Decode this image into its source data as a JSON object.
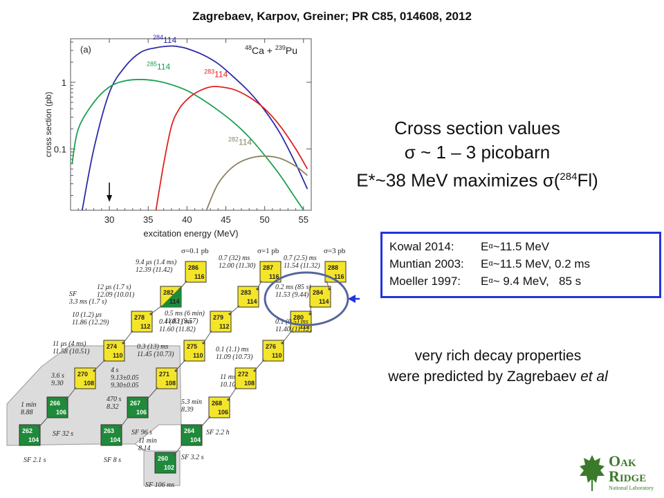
{
  "header": {
    "reference": "Zagrebaev, Karpov, Greiner; PR C85, 014608, 2012"
  },
  "summary": {
    "line1": "Cross section values",
    "line2": "σ ~ 1 – 3 picobarn",
    "line3_pre": "E*~38 MeV maximizes σ(",
    "line3_sup": "284",
    "line3_post": "Fl)"
  },
  "measurements": [
    {
      "label": "Kowal 2014:",
      "sym": "E",
      "sub": "α",
      "value": "~11.5 MeV"
    },
    {
      "label": "Muntian 2003:",
      "sym": "E",
      "sub": "α",
      "value": "~11.5 MeV, 0.2 ms"
    },
    {
      "label": "Moeller 1997:",
      "sym": "E",
      "sub": "α",
      "value": "~ 9.4 MeV,   85 s"
    }
  ],
  "remark": {
    "line1": "very rich decay properties",
    "line2_pre": "were predicted by Zagrebaev ",
    "line2_em": "et al"
  },
  "logo": {
    "line1_big1": "O",
    "line1_rest1": "AK",
    "line2_big": "R",
    "line2_rest": "IDGE",
    "line3": "National Laboratory",
    "color": "#3a7a2a"
  },
  "chart_data": {
    "type": "line",
    "panel": "(a)",
    "reaction": {
      "m1": "48",
      "e1": "Ca",
      "plus": " + ",
      "m2": "239",
      "e2": "Pu"
    },
    "xlabel": "excitation energy (MeV)",
    "ylabel": "cross section (pb)",
    "xlim": [
      25,
      56
    ],
    "ylim": [
      0.012,
      4.5
    ],
    "yscale": "log",
    "xticks": [
      30,
      35,
      40,
      45,
      50,
      55
    ],
    "yticks": [
      {
        "v": 1,
        "label": "1"
      },
      {
        "v": 0.1,
        "label": "0.1"
      }
    ],
    "arrow_x": 30,
    "series": [
      {
        "name": "284 114",
        "A": "284",
        "Z": "114",
        "color": "#2a2aa8",
        "label_x": 35.6,
        "label_y": 3.9,
        "x": [
          26.5,
          28,
          30,
          32,
          34,
          36,
          38,
          39,
          40,
          42,
          44,
          46,
          48,
          50,
          52,
          54,
          55.5
        ],
        "y": [
          0.012,
          0.1,
          0.7,
          1.7,
          2.8,
          3.3,
          3.5,
          3.4,
          3.2,
          2.6,
          1.9,
          1.2,
          0.72,
          0.38,
          0.17,
          0.06,
          0.025
        ]
      },
      {
        "name": "285 114",
        "A": "285",
        "Z": "114",
        "color": "#1aa050",
        "label_x": 34.8,
        "label_y": 1.55,
        "x": [
          25.2,
          26,
          28,
          30,
          32,
          34,
          36,
          38,
          40,
          42,
          44,
          46,
          48,
          50,
          52,
          54,
          55.5
        ],
        "y": [
          0.06,
          0.2,
          0.5,
          0.85,
          1.05,
          1.1,
          1.05,
          0.92,
          0.75,
          0.55,
          0.38,
          0.25,
          0.15,
          0.08,
          0.04,
          0.018,
          0.01
        ]
      },
      {
        "name": "283 114",
        "A": "283",
        "Z": "114",
        "color": "#e02020",
        "label_x": 42.2,
        "label_y": 1.2,
        "x": [
          36,
          37,
          38,
          39,
          40,
          41,
          42,
          43,
          44,
          46,
          48,
          50,
          52,
          54,
          55.5
        ],
        "y": [
          0.012,
          0.06,
          0.22,
          0.4,
          0.55,
          0.68,
          0.78,
          0.85,
          0.86,
          0.78,
          0.6,
          0.4,
          0.22,
          0.1,
          0.05
        ]
      },
      {
        "name": "282 114",
        "A": "282",
        "Z": "114",
        "color": "#8a8260",
        "label_x": 45.3,
        "label_y": 0.115,
        "x": [
          42.5,
          44,
          46,
          48,
          50,
          52,
          54,
          55.5
        ],
        "y": [
          0.012,
          0.03,
          0.055,
          0.072,
          0.078,
          0.072,
          0.055,
          0.04
        ]
      }
    ]
  },
  "chain": {
    "sigma_labels": [
      "σ=0.1 pb",
      "σ=1 pb",
      "σ=3 pb"
    ],
    "nuclides": [
      {
        "A": "286",
        "Z": "116",
        "type": "y"
      },
      {
        "A": "287",
        "Z": "116",
        "type": "y"
      },
      {
        "A": "288",
        "Z": "116",
        "type": "y"
      },
      {
        "A": "282",
        "Z": "114",
        "type": "yg"
      },
      {
        "A": "283",
        "Z": "114",
        "type": "y"
      },
      {
        "A": "284",
        "Z": "114",
        "type": "y"
      },
      {
        "A": "278",
        "Z": "112",
        "type": "y"
      },
      {
        "A": "279",
        "Z": "112",
        "type": "y"
      },
      {
        "A": "280",
        "Z": "112",
        "type": "y"
      },
      {
        "A": "274",
        "Z": "110",
        "type": "y"
      },
      {
        "A": "275",
        "Z": "110",
        "type": "y"
      },
      {
        "A": "276",
        "Z": "110",
        "type": "y"
      },
      {
        "A": "270",
        "Z": "108",
        "type": "y"
      },
      {
        "A": "271",
        "Z": "108",
        "type": "y"
      },
      {
        "A": "272",
        "Z": "108",
        "type": "y"
      },
      {
        "A": "266",
        "Z": "106",
        "type": "g"
      },
      {
        "A": "267",
        "Z": "106",
        "type": "g"
      },
      {
        "A": "268",
        "Z": "106",
        "type": "y"
      },
      {
        "A": "262",
        "Z": "104",
        "type": "g"
      },
      {
        "A": "263",
        "Z": "104",
        "type": "g"
      },
      {
        "A": "264",
        "Z": "104",
        "type": "g"
      },
      {
        "A": "260",
        "Z": "102",
        "type": "g"
      }
    ],
    "texts": [
      [
        "9.4 μs (1.4 ms)",
        "12.39 (11.42)"
      ],
      [
        "0.7 (32) ms",
        "12.00 (11.30)"
      ],
      [
        "0.7 (2.5) ms",
        "11.54 (11.32)"
      ],
      [
        "12 μs (1.7 s)",
        "12.09 (10.01)"
      ],
      [
        "SF",
        "3.3 ms (1.7 s)"
      ],
      [
        "0.5 ms (6 min)",
        "11.83 (9.57)"
      ],
      [
        "0.2 ms (85 s)",
        "11.53 (9.44)"
      ],
      [
        "10 (1.2) μs",
        "11.86 (12.29)"
      ],
      [
        "0.4 (0.1) ms",
        "11.60 (11.82)"
      ],
      [
        "0.1 (0.5) ms",
        "11.40 (11.12)"
      ],
      [
        "11 μs (4 ms)",
        "11.58 (10.51)"
      ],
      [
        "0.3 (13) ms",
        "11.45 (10.73)"
      ],
      [
        "0.1 (1.1) ms",
        "11.09 (10.73)"
      ],
      [
        "3.6 s",
        "9.30"
      ],
      [
        "4 s",
        "9.13±0.05",
        "9.30±0.05"
      ],
      [
        "11 ms",
        "10.10"
      ],
      [
        "1 min",
        "8.88"
      ],
      [
        "470 s",
        "8.32"
      ],
      [
        "5.3 min",
        "8.39"
      ],
      [
        "SF 32 s"
      ],
      [
        "SF 96 s"
      ],
      [
        "SF 2.2 h"
      ],
      [
        "11 min",
        "8.14"
      ],
      [
        "SF 2.1 s"
      ],
      [
        "SF 8 s"
      ],
      [
        "SF 3.2 s"
      ],
      [
        "SF 106 ms"
      ]
    ]
  }
}
